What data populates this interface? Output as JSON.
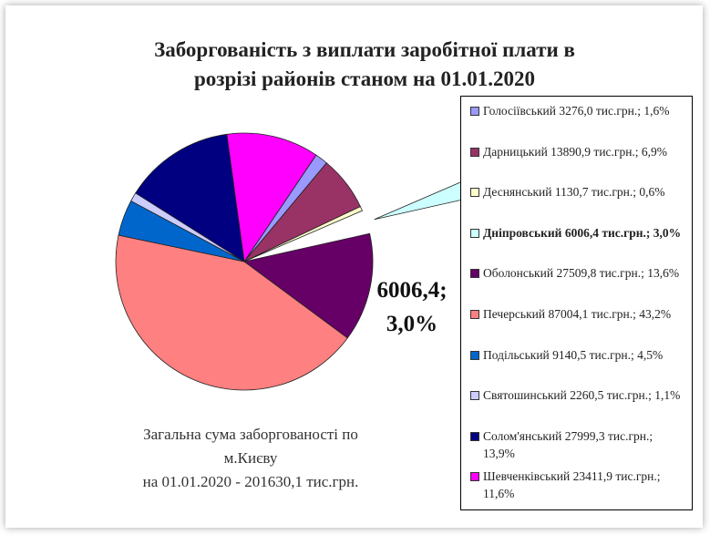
{
  "chart_data": {
    "type": "pie",
    "title": [
      "Заборгованість з виплати заробітної плати в",
      "розрізі районів станом на 01.01.2020"
    ],
    "categories": [
      "Голосіївський",
      "Дарницький",
      "Деснянський",
      "Дніпровський",
      "Оболонський",
      "Печерський",
      "Подільський",
      "Святошинський",
      "Солом'янський",
      "Шевченківський"
    ],
    "values": [
      3276.0,
      13890.9,
      1130.7,
      6006.4,
      27509.8,
      87004.1,
      9140.5,
      2260.5,
      27999.3,
      23411.9
    ],
    "value_labels": [
      "3276,0 тис.грн.; 1,6%",
      "13890,9 тис.грн.; 6,9%",
      "1130,7 тис.грн.; 0,6%",
      "6006,4 тис.грн.; 3,0%",
      "27509,8 тис.грн.; 13,6%",
      "87004,1 тис.грн.; 43,2%",
      "9140,5 тис.грн.; 4,5%",
      "2260,5 тис.грн.; 1,1%",
      "27999,3 тис.грн.; 13,9%",
      "23411,9 тис.грн.; 11,6%"
    ],
    "colors": [
      "#9999ff",
      "#993366",
      "#ffffcc",
      "#ccffff",
      "#660066",
      "#ff8080",
      "#0066cc",
      "#ccccff",
      "#000080",
      "#ff00ff"
    ],
    "explode": "Дніпровський",
    "annotation": [
      "6006,4;",
      "3,0%"
    ],
    "footer": [
      "Загальна сума заборгованості по",
      "м.Києву",
      "на 01.01.2020 - 201630,1 тис.грн."
    ],
    "legend": "right"
  }
}
